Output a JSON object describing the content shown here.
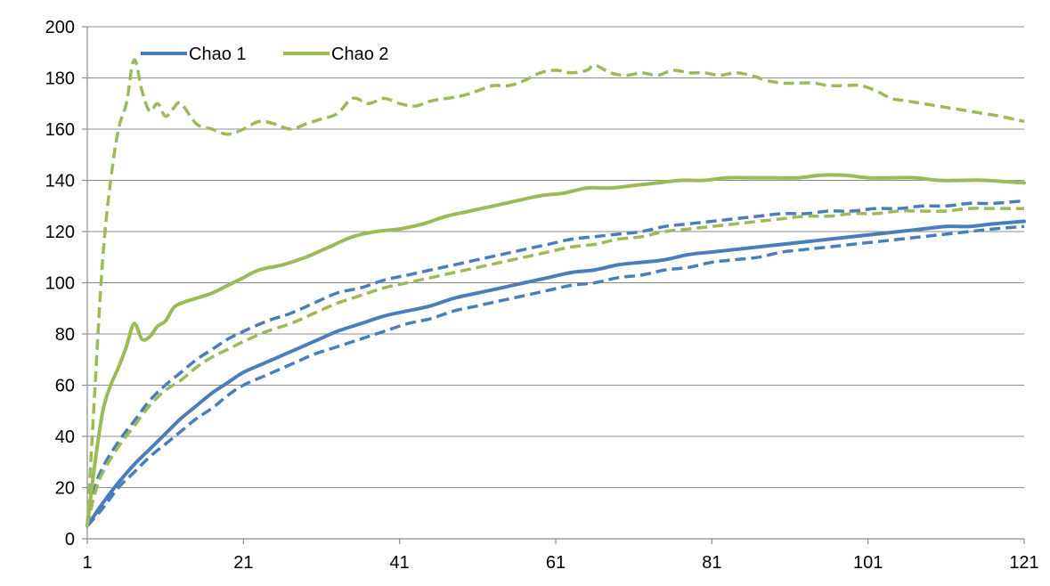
{
  "chart_data": {
    "type": "line",
    "title": "",
    "xlabel": "",
    "ylabel": "",
    "xlim": [
      1,
      121
    ],
    "ylim": [
      0,
      200
    ],
    "x_ticks": [
      "1",
      "21",
      "41",
      "61",
      "81",
      "101",
      "121"
    ],
    "y_ticks": [
      "0",
      "20",
      "40",
      "60",
      "80",
      "100",
      "120",
      "140",
      "160",
      "180",
      "200"
    ],
    "grid": "horizontal",
    "legend_position": "top-left",
    "legend": [
      {
        "label": "Chao 1",
        "color": "#4a7ebb"
      },
      {
        "label": "Chao 2",
        "color": "#9bbb59"
      }
    ],
    "series": [
      {
        "name": "Chao 1",
        "color": "#4a7ebb",
        "dash": "solid",
        "points": [
          [
            1,
            5
          ],
          [
            3,
            14
          ],
          [
            5,
            22
          ],
          [
            7,
            29
          ],
          [
            9,
            35
          ],
          [
            11,
            41
          ],
          [
            13,
            47
          ],
          [
            15,
            52
          ],
          [
            17,
            57
          ],
          [
            19,
            61
          ],
          [
            21,
            65
          ],
          [
            24,
            69
          ],
          [
            27,
            73
          ],
          [
            30,
            77
          ],
          [
            33,
            81
          ],
          [
            36,
            84
          ],
          [
            39,
            87
          ],
          [
            42,
            89
          ],
          [
            45,
            91
          ],
          [
            48,
            94
          ],
          [
            51,
            96
          ],
          [
            54,
            98
          ],
          [
            57,
            100
          ],
          [
            60,
            102
          ],
          [
            63,
            104
          ],
          [
            66,
            105
          ],
          [
            69,
            107
          ],
          [
            72,
            108
          ],
          [
            75,
            109
          ],
          [
            78,
            111
          ],
          [
            81,
            112
          ],
          [
            84,
            113
          ],
          [
            87,
            114
          ],
          [
            90,
            115
          ],
          [
            93,
            116
          ],
          [
            96,
            117
          ],
          [
            99,
            118
          ],
          [
            102,
            119
          ],
          [
            105,
            120
          ],
          [
            108,
            121
          ],
          [
            111,
            122
          ],
          [
            114,
            122
          ],
          [
            117,
            123
          ],
          [
            121,
            124
          ]
        ]
      },
      {
        "name": "Chao 2",
        "color": "#9bbb59",
        "dash": "solid",
        "points": [
          [
            1,
            5
          ],
          [
            2,
            30
          ],
          [
            3,
            50
          ],
          [
            4,
            60
          ],
          [
            5,
            67
          ],
          [
            6,
            75
          ],
          [
            7,
            84
          ],
          [
            8,
            78
          ],
          [
            9,
            79
          ],
          [
            10,
            83
          ],
          [
            11,
            85
          ],
          [
            12,
            90
          ],
          [
            13,
            92
          ],
          [
            15,
            94
          ],
          [
            17,
            96
          ],
          [
            19,
            99
          ],
          [
            21,
            102
          ],
          [
            23,
            105
          ],
          [
            26,
            107
          ],
          [
            29,
            110
          ],
          [
            32,
            114
          ],
          [
            35,
            118
          ],
          [
            38,
            120
          ],
          [
            41,
            121
          ],
          [
            44,
            123
          ],
          [
            47,
            126
          ],
          [
            50,
            128
          ],
          [
            53,
            130
          ],
          [
            56,
            132
          ],
          [
            59,
            134
          ],
          [
            62,
            135
          ],
          [
            65,
            137
          ],
          [
            68,
            137
          ],
          [
            71,
            138
          ],
          [
            74,
            139
          ],
          [
            77,
            140
          ],
          [
            80,
            140
          ],
          [
            83,
            141
          ],
          [
            86,
            141
          ],
          [
            89,
            141
          ],
          [
            92,
            141
          ],
          [
            95,
            142
          ],
          [
            98,
            142
          ],
          [
            101,
            141
          ],
          [
            104,
            141
          ],
          [
            107,
            141
          ],
          [
            110,
            140
          ],
          [
            113,
            140
          ],
          [
            116,
            140
          ],
          [
            121,
            139
          ]
        ]
      },
      {
        "name": "",
        "color": "#4a7ebb",
        "dash": "dashed",
        "points": [
          [
            1,
            5
          ],
          [
            2,
            20
          ],
          [
            3,
            28
          ],
          [
            5,
            38
          ],
          [
            7,
            46
          ],
          [
            9,
            54
          ],
          [
            11,
            60
          ],
          [
            13,
            65
          ],
          [
            15,
            70
          ],
          [
            17,
            74
          ],
          [
            19,
            78
          ],
          [
            21,
            81
          ],
          [
            24,
            85
          ],
          [
            27,
            88
          ],
          [
            30,
            92
          ],
          [
            33,
            96
          ],
          [
            36,
            98
          ],
          [
            39,
            101
          ],
          [
            42,
            103
          ],
          [
            45,
            105
          ],
          [
            48,
            107
          ],
          [
            51,
            109
          ],
          [
            54,
            111
          ],
          [
            57,
            113
          ],
          [
            60,
            115
          ],
          [
            63,
            117
          ],
          [
            66,
            118
          ],
          [
            69,
            119
          ],
          [
            72,
            120
          ],
          [
            75,
            122
          ],
          [
            78,
            123
          ],
          [
            81,
            124
          ],
          [
            84,
            125
          ],
          [
            87,
            126
          ],
          [
            90,
            127
          ],
          [
            93,
            127
          ],
          [
            96,
            128
          ],
          [
            99,
            128
          ],
          [
            102,
            129
          ],
          [
            105,
            129
          ],
          [
            108,
            130
          ],
          [
            111,
            130
          ],
          [
            114,
            131
          ],
          [
            117,
            131
          ],
          [
            121,
            132
          ]
        ]
      },
      {
        "name": "",
        "color": "#9bbb59",
        "dash": "dashed",
        "points": [
          [
            1,
            5
          ],
          [
            2,
            18
          ],
          [
            3,
            26
          ],
          [
            5,
            36
          ],
          [
            7,
            44
          ],
          [
            9,
            52
          ],
          [
            11,
            58
          ],
          [
            13,
            62
          ],
          [
            15,
            67
          ],
          [
            17,
            71
          ],
          [
            19,
            74
          ],
          [
            21,
            77
          ],
          [
            24,
            81
          ],
          [
            27,
            84
          ],
          [
            30,
            88
          ],
          [
            33,
            92
          ],
          [
            36,
            95
          ],
          [
            39,
            98
          ],
          [
            42,
            100
          ],
          [
            45,
            102
          ],
          [
            48,
            104
          ],
          [
            51,
            106
          ],
          [
            54,
            108
          ],
          [
            57,
            110
          ],
          [
            60,
            112
          ],
          [
            63,
            114
          ],
          [
            66,
            115
          ],
          [
            69,
            117
          ],
          [
            72,
            118
          ],
          [
            75,
            120
          ],
          [
            78,
            121
          ],
          [
            81,
            122
          ],
          [
            84,
            123
          ],
          [
            87,
            124
          ],
          [
            90,
            125
          ],
          [
            93,
            126
          ],
          [
            96,
            126
          ],
          [
            99,
            127
          ],
          [
            102,
            127
          ],
          [
            105,
            128
          ],
          [
            108,
            128
          ],
          [
            111,
            128
          ],
          [
            114,
            129
          ],
          [
            117,
            129
          ],
          [
            121,
            129
          ]
        ]
      },
      {
        "name": "",
        "color": "#4a7ebb",
        "dash": "dashed",
        "points": [
          [
            1,
            5
          ],
          [
            3,
            12
          ],
          [
            5,
            20
          ],
          [
            7,
            26
          ],
          [
            9,
            32
          ],
          [
            11,
            37
          ],
          [
            13,
            42
          ],
          [
            15,
            47
          ],
          [
            17,
            51
          ],
          [
            19,
            56
          ],
          [
            21,
            60
          ],
          [
            24,
            64
          ],
          [
            27,
            68
          ],
          [
            30,
            72
          ],
          [
            33,
            75
          ],
          [
            36,
            78
          ],
          [
            39,
            81
          ],
          [
            42,
            84
          ],
          [
            45,
            86
          ],
          [
            48,
            89
          ],
          [
            51,
            91
          ],
          [
            54,
            93
          ],
          [
            57,
            95
          ],
          [
            60,
            97
          ],
          [
            63,
            99
          ],
          [
            66,
            100
          ],
          [
            69,
            102
          ],
          [
            72,
            103
          ],
          [
            75,
            105
          ],
          [
            78,
            106
          ],
          [
            81,
            108
          ],
          [
            84,
            109
          ],
          [
            87,
            110
          ],
          [
            90,
            112
          ],
          [
            93,
            113
          ],
          [
            96,
            114
          ],
          [
            99,
            115
          ],
          [
            102,
            116
          ],
          [
            105,
            117
          ],
          [
            108,
            118
          ],
          [
            111,
            119
          ],
          [
            114,
            120
          ],
          [
            117,
            121
          ],
          [
            121,
            122
          ]
        ]
      },
      {
        "name": "",
        "color": "#9bbb59",
        "dash": "dashed",
        "points": [
          [
            1,
            5
          ],
          [
            2,
            60
          ],
          [
            3,
            110
          ],
          [
            4,
            140
          ],
          [
            5,
            160
          ],
          [
            6,
            170
          ],
          [
            7,
            187
          ],
          [
            8,
            175
          ],
          [
            9,
            167
          ],
          [
            10,
            170
          ],
          [
            11,
            165
          ],
          [
            12,
            168
          ],
          [
            13,
            170
          ],
          [
            15,
            162
          ],
          [
            17,
            160
          ],
          [
            19,
            158
          ],
          [
            21,
            160
          ],
          [
            23,
            163
          ],
          [
            25,
            162
          ],
          [
            27,
            160
          ],
          [
            29,
            162
          ],
          [
            31,
            164
          ],
          [
            33,
            166
          ],
          [
            35,
            172
          ],
          [
            37,
            170
          ],
          [
            39,
            172
          ],
          [
            41,
            170
          ],
          [
            43,
            169
          ],
          [
            45,
            171
          ],
          [
            47,
            172
          ],
          [
            49,
            173
          ],
          [
            51,
            175
          ],
          [
            53,
            177
          ],
          [
            55,
            177
          ],
          [
            57,
            179
          ],
          [
            59,
            182
          ],
          [
            61,
            183
          ],
          [
            63,
            182
          ],
          [
            65,
            183
          ],
          [
            66,
            185
          ],
          [
            68,
            182
          ],
          [
            70,
            181
          ],
          [
            72,
            182
          ],
          [
            74,
            181
          ],
          [
            76,
            183
          ],
          [
            78,
            182
          ],
          [
            80,
            182
          ],
          [
            82,
            181
          ],
          [
            84,
            182
          ],
          [
            86,
            181
          ],
          [
            88,
            179
          ],
          [
            90,
            178
          ],
          [
            92,
            178
          ],
          [
            94,
            178
          ],
          [
            96,
            177
          ],
          [
            98,
            177
          ],
          [
            100,
            177
          ],
          [
            102,
            175
          ],
          [
            104,
            172
          ],
          [
            106,
            171
          ],
          [
            108,
            170
          ],
          [
            110,
            169
          ],
          [
            112,
            168
          ],
          [
            114,
            167
          ],
          [
            116,
            166
          ],
          [
            118,
            165
          ],
          [
            121,
            163
          ]
        ]
      }
    ]
  }
}
